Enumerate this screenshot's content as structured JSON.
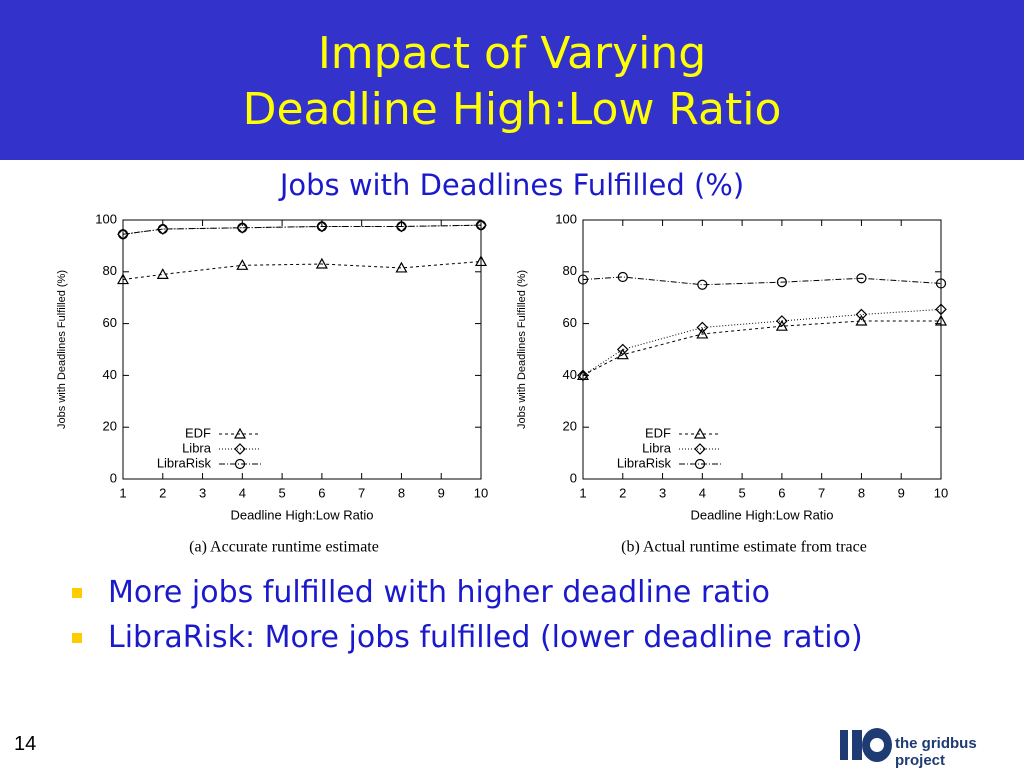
{
  "slide": {
    "title_line1": "Impact of Varying",
    "title_line2": "Deadline High:Low Ratio",
    "subtitle": "Jobs with Deadlines Fulfilled (%)",
    "bullets": [
      "More jobs fulfilled with higher deadline ratio",
      "LibraRisk: More jobs fulfilled (lower deadline ratio)"
    ],
    "page_number": "14",
    "logo_text": "the gridbus project"
  },
  "chart_data": [
    {
      "type": "line",
      "caption": "(a) Accurate runtime estimate",
      "x_label": "Deadline High:Low Ratio",
      "y_label": "Jobs with Deadlines Fulfilled (%)",
      "x": [
        1,
        2,
        4,
        6,
        8,
        10
      ],
      "xlim": [
        1,
        10
      ],
      "xticks": [
        1,
        2,
        3,
        4,
        5,
        6,
        7,
        8,
        9,
        10
      ],
      "ylim": [
        0,
        100
      ],
      "yticks": [
        0,
        20,
        40,
        60,
        80,
        100
      ],
      "legend": "lower left",
      "series": [
        {
          "name": "EDF",
          "color": "#000000",
          "marker": "triangle",
          "dash": "3,3",
          "values": [
            77,
            79,
            82.5,
            83,
            81.5,
            84
          ]
        },
        {
          "name": "Libra",
          "color": "#000000",
          "marker": "diamond",
          "dash": "1,2",
          "values": [
            94.5,
            96.5,
            97,
            97.5,
            97.5,
            98
          ]
        },
        {
          "name": "LibraRisk",
          "color": "#000000",
          "marker": "circle",
          "dash": "6,2,1,2",
          "values": [
            94.5,
            96.5,
            97,
            97.5,
            97.5,
            98
          ]
        }
      ]
    },
    {
      "type": "line",
      "caption": "(b) Actual runtime estimate from trace",
      "x_label": "Deadline High:Low Ratio",
      "y_label": "Jobs with Deadlines Fulfilled (%)",
      "x": [
        1,
        2,
        4,
        6,
        8,
        10
      ],
      "xlim": [
        1,
        10
      ],
      "xticks": [
        1,
        2,
        3,
        4,
        5,
        6,
        7,
        8,
        9,
        10
      ],
      "ylim": [
        0,
        100
      ],
      "yticks": [
        0,
        20,
        40,
        60,
        80,
        100
      ],
      "legend": "lower left",
      "series": [
        {
          "name": "EDF",
          "color": "#000000",
          "marker": "triangle",
          "dash": "3,3",
          "values": [
            40,
            48,
            56,
            59,
            61,
            61
          ]
        },
        {
          "name": "Libra",
          "color": "#000000",
          "marker": "diamond",
          "dash": "1,2",
          "values": [
            40,
            50,
            58.5,
            61,
            63.5,
            65.5
          ]
        },
        {
          "name": "LibraRisk",
          "color": "#000000",
          "marker": "circle",
          "dash": "6,2,1,2",
          "values": [
            77,
            78,
            75,
            76,
            77.5,
            75.5
          ]
        }
      ]
    }
  ]
}
